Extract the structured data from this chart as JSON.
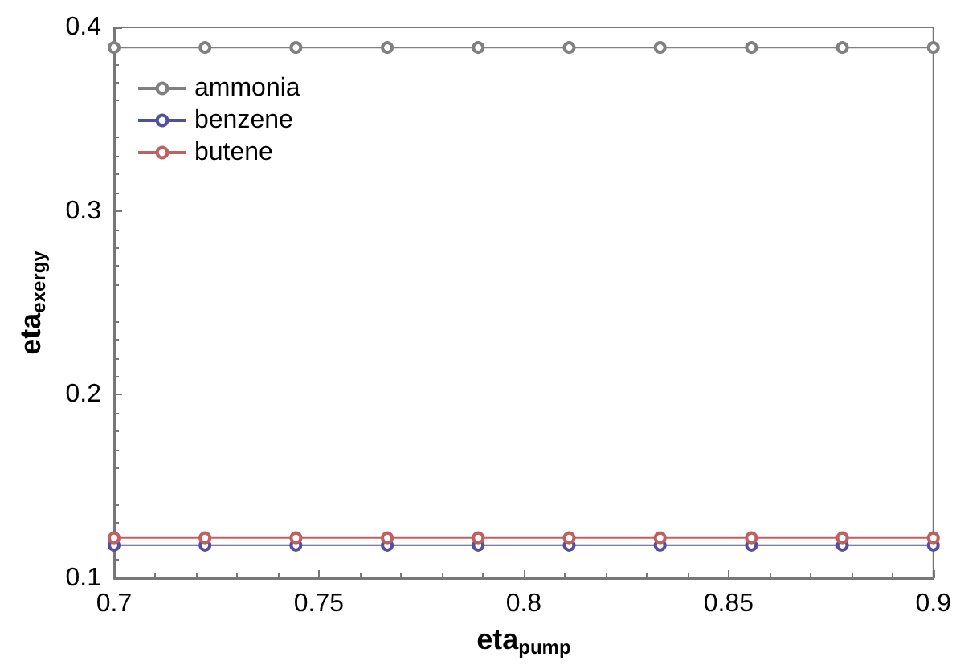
{
  "chart_data": {
    "type": "line",
    "xlabel": "eta$_{pump}$",
    "ylabel": "eta$_{exergy}$",
    "x": [
      0.7,
      0.7222,
      0.7444,
      0.7667,
      0.7889,
      0.8111,
      0.8333,
      0.8556,
      0.8778,
      0.9
    ],
    "series": [
      {
        "name": "ammonia",
        "color": "#808080",
        "values": [
          0.389,
          0.389,
          0.389,
          0.389,
          0.389,
          0.389,
          0.389,
          0.389,
          0.389,
          0.389
        ]
      },
      {
        "name": "benzene",
        "color": "#5050a0",
        "values": [
          0.118,
          0.118,
          0.118,
          0.118,
          0.118,
          0.118,
          0.118,
          0.118,
          0.118,
          0.118
        ]
      },
      {
        "name": "butene",
        "color": "#c06060",
        "values": [
          0.122,
          0.122,
          0.122,
          0.122,
          0.122,
          0.122,
          0.122,
          0.122,
          0.122,
          0.122
        ]
      }
    ],
    "xlim": [
      0.7,
      0.9
    ],
    "xticks": [
      0.7,
      0.75,
      0.8,
      0.85,
      0.9
    ],
    "ylim": [
      0.1,
      0.4
    ],
    "yticks": [
      0.1,
      0.2,
      0.3,
      0.4
    ],
    "legend": "top left",
    "marker": "circle",
    "line_style": "solid",
    "grid": false
  }
}
